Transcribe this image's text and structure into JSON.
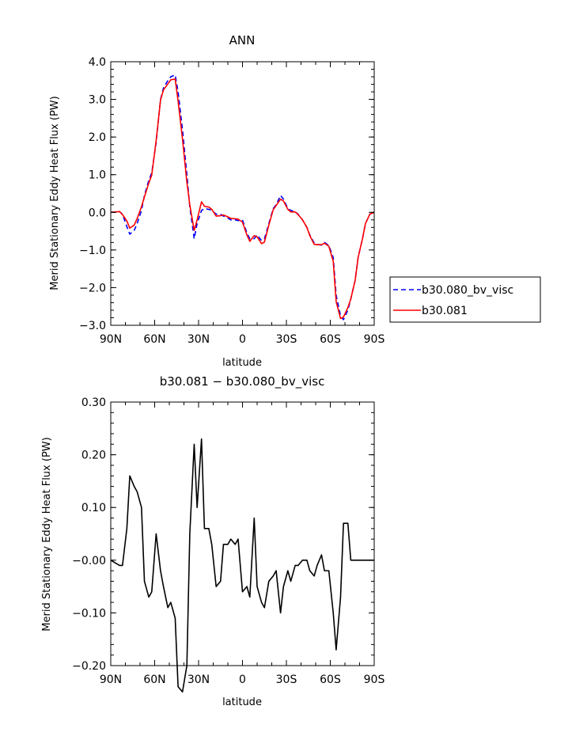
{
  "chart_data": [
    {
      "type": "line",
      "title": "ANN",
      "xlabel": "latitude",
      "ylabel": "Merid Stationary Eddy Heat Flux (PW)",
      "xlim": [
        90,
        -90
      ],
      "ylim": [
        -3.0,
        4.0
      ],
      "x_ticks": [
        90,
        60,
        30,
        0,
        -30,
        -60,
        -90
      ],
      "x_tick_labels": [
        "90N",
        "60N",
        "30N",
        "0",
        "30S",
        "60S",
        "90S"
      ],
      "y_ticks": [
        -3.0,
        -2.0,
        -1.0,
        0.0,
        1.0,
        2.0,
        3.0,
        4.0
      ],
      "y_tick_labels": [
        "−3.0",
        "−2.0",
        "−1.0",
        "0.0",
        "1.0",
        "2.0",
        "3.0",
        "4.0"
      ],
      "legend": {
        "placement": "right",
        "entries": [
          "b30.080_bv_visc",
          "b30.081"
        ]
      },
      "x": [
        90,
        84,
        82,
        79,
        77,
        74,
        72,
        69,
        67,
        64,
        62,
        59,
        56,
        54,
        51,
        49,
        46,
        44,
        41,
        38,
        36,
        33,
        31,
        28,
        26,
        23,
        21,
        18,
        15,
        13,
        10,
        8,
        5,
        3,
        0,
        -3,
        -5,
        -8,
        -10,
        -13,
        -15,
        -18,
        -21,
        -23,
        -26,
        -28,
        -31,
        -33,
        -36,
        -38,
        -41,
        -44,
        -46,
        -49,
        -51,
        -54,
        -56,
        -59,
        -62,
        -64,
        -67,
        -69,
        -72,
        -74,
        -77,
        -79,
        -82,
        -84,
        -87,
        -90
      ],
      "series": [
        {
          "name": "b30.080_bv_visc",
          "color": "#0000ff",
          "dash": "dashed",
          "values": [
            0.0,
            0.02,
            -0.05,
            -0.38,
            -0.58,
            -0.48,
            -0.3,
            0.05,
            0.45,
            0.85,
            1.05,
            1.85,
            3.0,
            3.3,
            3.5,
            3.6,
            3.65,
            3.2,
            2.2,
            1.0,
            0.15,
            -0.7,
            -0.3,
            0.05,
            0.1,
            0.08,
            0.05,
            -0.05,
            -0.05,
            -0.1,
            -0.15,
            -0.2,
            -0.2,
            -0.22,
            -0.2,
            -0.55,
            -0.7,
            -0.7,
            -0.6,
            -0.75,
            -0.7,
            -0.3,
            0.1,
            0.2,
            0.45,
            0.35,
            0.1,
            0.05,
            0.02,
            -0.05,
            -0.2,
            -0.4,
            -0.6,
            -0.82,
            -0.85,
            -0.87,
            -0.8,
            -0.88,
            -1.2,
            -2.2,
            -2.75,
            -2.85,
            -2.6,
            -2.3,
            -1.8,
            -1.2,
            -0.7,
            -0.3,
            -0.05,
            0.0
          ]
        },
        {
          "name": "b30.081",
          "color": "#ff0000",
          "dash": "solid",
          "values": [
            0.0,
            0.02,
            -0.06,
            -0.23,
            -0.42,
            -0.34,
            -0.17,
            0.15,
            0.41,
            0.78,
            0.99,
            1.9,
            2.98,
            3.25,
            3.41,
            3.52,
            3.54,
            2.96,
            1.95,
            0.8,
            0.2,
            -0.48,
            -0.2,
            0.28,
            0.16,
            0.14,
            0.08,
            -0.1,
            -0.09,
            -0.07,
            -0.12,
            -0.16,
            -0.17,
            -0.18,
            -0.26,
            -0.6,
            -0.77,
            -0.62,
            -0.65,
            -0.83,
            -0.79,
            -0.34,
            0.07,
            0.18,
            0.35,
            0.3,
            0.08,
            0.01,
            0.01,
            -0.06,
            -0.2,
            -0.4,
            -0.62,
            -0.85,
            -0.86,
            -0.86,
            -0.82,
            -0.9,
            -1.3,
            -2.37,
            -2.82,
            -2.78,
            -2.53,
            -2.3,
            -1.8,
            -1.2,
            -0.7,
            -0.3,
            -0.05,
            0.0
          ]
        }
      ]
    },
    {
      "type": "line",
      "title": "b30.081 − b30.080_bv_visc",
      "xlabel": "latitude",
      "ylabel": "Merid Stationary Eddy Heat Flux (PW)",
      "xlim": [
        90,
        -90
      ],
      "ylim": [
        -0.2,
        0.3
      ],
      "x_ticks": [
        90,
        60,
        30,
        0,
        -30,
        -60,
        -90
      ],
      "x_tick_labels": [
        "90N",
        "60N",
        "30N",
        "0",
        "30S",
        "60S",
        "90S"
      ],
      "y_ticks": [
        -0.2,
        -0.1,
        0.0,
        0.1,
        0.2,
        0.3
      ],
      "y_tick_labels": [
        "−0.20",
        "−0.10",
        "−0.00",
        "0.10",
        "0.20",
        "0.30"
      ],
      "x": [
        90,
        84,
        82,
        79,
        77,
        74,
        72,
        69,
        67,
        64,
        62,
        59,
        56,
        54,
        51,
        49,
        46,
        44,
        41,
        38,
        36,
        33,
        31,
        28,
        26,
        23,
        21,
        18,
        15,
        13,
        10,
        8,
        5,
        3,
        0,
        -3,
        -5,
        -8,
        -10,
        -13,
        -15,
        -18,
        -21,
        -23,
        -26,
        -28,
        -31,
        -33,
        -36,
        -38,
        -41,
        -44,
        -46,
        -49,
        -51,
        -54,
        -56,
        -59,
        -62,
        -64,
        -67,
        -69,
        -72,
        -74,
        -77,
        -79,
        -82,
        -84,
        -87,
        -90
      ],
      "series": [
        {
          "color": "#000000",
          "values": [
            0.0,
            -0.01,
            -0.01,
            0.06,
            0.16,
            0.14,
            0.13,
            0.1,
            -0.04,
            -0.07,
            -0.06,
            0.05,
            -0.02,
            -0.05,
            -0.09,
            -0.08,
            -0.11,
            -0.24,
            -0.25,
            -0.2,
            0.05,
            0.22,
            0.1,
            0.23,
            0.06,
            0.06,
            0.03,
            -0.05,
            -0.04,
            0.03,
            0.03,
            0.04,
            0.03,
            0.04,
            -0.06,
            -0.05,
            -0.07,
            0.08,
            -0.05,
            -0.08,
            -0.09,
            -0.04,
            -0.03,
            -0.02,
            -0.1,
            -0.05,
            -0.02,
            -0.04,
            -0.01,
            -0.01,
            0.0,
            0.0,
            -0.02,
            -0.03,
            -0.01,
            0.01,
            -0.02,
            -0.02,
            -0.1,
            -0.17,
            -0.07,
            0.07,
            0.07,
            0.0,
            0.0,
            0.0,
            0.0,
            0.0,
            0.0,
            0.0
          ]
        }
      ]
    }
  ]
}
